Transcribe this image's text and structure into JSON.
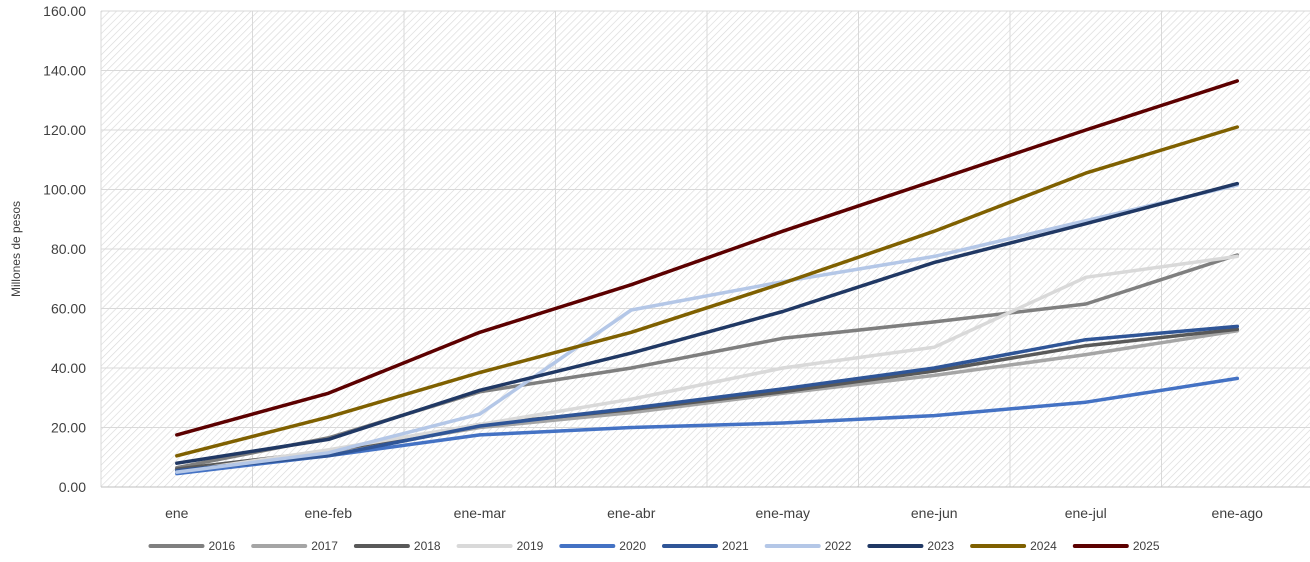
{
  "chart_data": {
    "type": "line",
    "title": "",
    "xlabel": "",
    "ylabel": "Millones de pesos",
    "ylim": [
      0,
      160
    ],
    "yticks": [
      "0.00",
      "20.00",
      "40.00",
      "60.00",
      "80.00",
      "100.00",
      "120.00",
      "140.00",
      "160.00"
    ],
    "categories": [
      "ene",
      "ene-feb",
      "ene-mar",
      "ene-abr",
      "ene-may",
      "ene-jun",
      "ene-jul",
      "ene-ago"
    ],
    "grid": true,
    "legend_position": "bottom",
    "series": [
      {
        "name": "2016",
        "color": "#7f7f7f",
        "values": [
          6.5,
          16.5,
          32.0,
          40.0,
          50.0,
          55.5,
          61.5,
          78.0
        ]
      },
      {
        "name": "2017",
        "color": "#a5a5a5",
        "values": [
          5.5,
          11.5,
          20.0,
          25.0,
          31.5,
          37.5,
          44.5,
          52.5
        ]
      },
      {
        "name": "2018",
        "color": "#595959",
        "values": [
          6.0,
          12.0,
          21.0,
          26.0,
          32.0,
          39.0,
          47.5,
          53.0
        ]
      },
      {
        "name": "2019",
        "color": "#d9d9d9",
        "values": [
          5.0,
          12.5,
          21.0,
          29.5,
          40.0,
          47.0,
          70.5,
          77.5
        ]
      },
      {
        "name": "2020",
        "color": "#4472c4",
        "values": [
          4.5,
          10.5,
          17.5,
          20.0,
          21.5,
          24.0,
          28.5,
          36.5
        ]
      },
      {
        "name": "2021",
        "color": "#2f5597",
        "values": [
          5.5,
          10.5,
          20.5,
          26.5,
          33.0,
          40.0,
          49.5,
          54.0
        ]
      },
      {
        "name": "2022",
        "color": "#b4c7e7",
        "values": [
          5.0,
          11.5,
          24.5,
          59.5,
          69.0,
          77.5,
          89.5,
          101.5
        ]
      },
      {
        "name": "2023",
        "color": "#203864",
        "values": [
          8.0,
          16.0,
          32.5,
          45.0,
          59.0,
          75.5,
          88.5,
          102.0
        ]
      },
      {
        "name": "2024",
        "color": "#7f6000",
        "values": [
          10.5,
          23.5,
          38.5,
          52.0,
          68.5,
          86.0,
          105.5,
          121.0
        ]
      },
      {
        "name": "2025",
        "color": "#5c0000",
        "values": [
          17.5,
          31.5,
          52.0,
          68.0,
          86.0,
          103.0,
          120.0,
          136.5
        ]
      }
    ]
  }
}
